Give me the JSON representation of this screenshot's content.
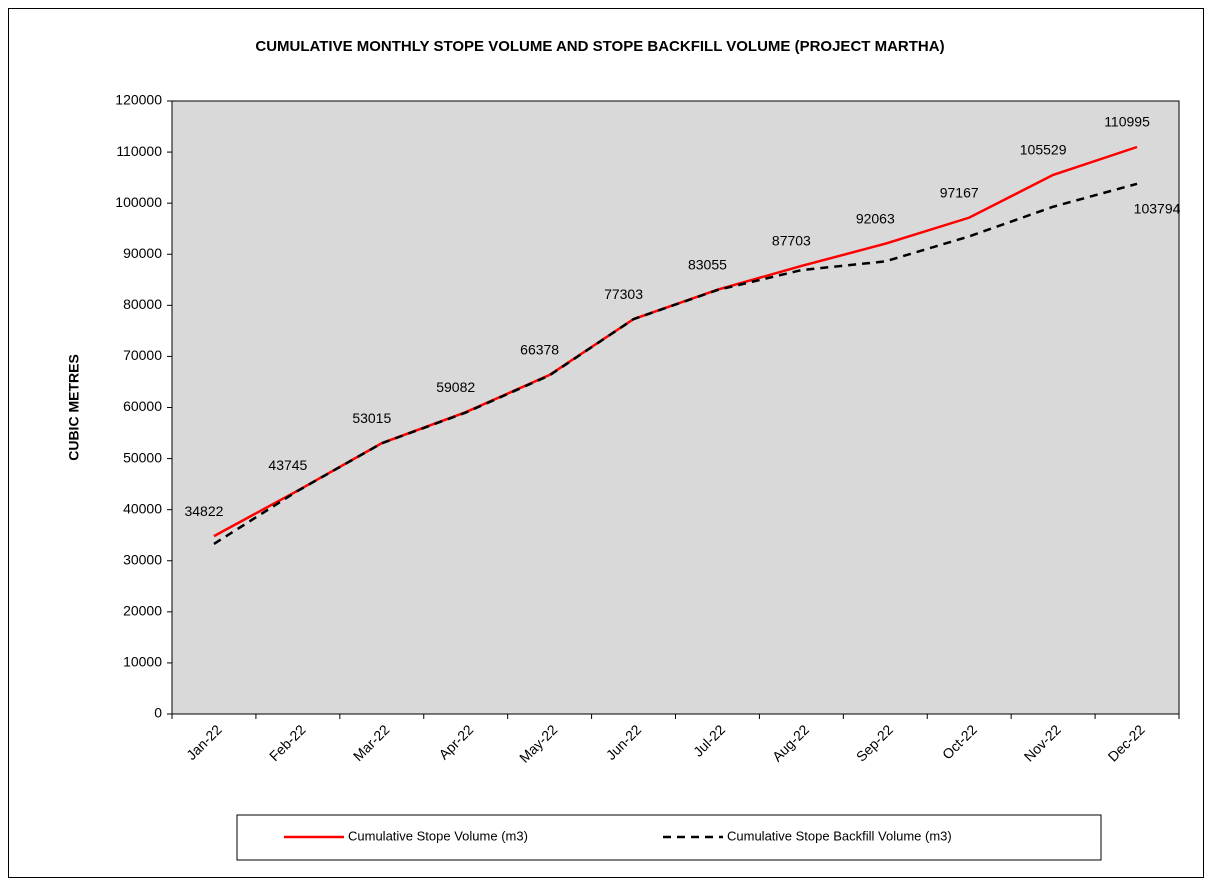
{
  "chart_data": {
    "type": "line",
    "title": "CUMULATIVE MONTHLY STOPE VOLUME AND STOPE BACKFILL VOLUME (PROJECT MARTHA)",
    "y_label": "CUBIC METRES",
    "categories": [
      "Jan-22",
      "Feb-22",
      "Mar-22",
      "Apr-22",
      "May-22",
      "Jun-22",
      "Jul-22",
      "Aug-22",
      "Sep-22",
      "Oct-22",
      "Nov-22",
      "Dec-22"
    ],
    "series": [
      {
        "name": "Cumulative Stope Volume (m3)",
        "color": "#ff0000",
        "dash": "solid",
        "values": [
          34822,
          43745,
          53015,
          59082,
          66378,
          77303,
          83055,
          87703,
          92063,
          97167,
          105529,
          110995
        ]
      },
      {
        "name": "Cumulative Stope Backfill Volume (m3)",
        "color": "#000000",
        "dash": "dashed",
        "values": [
          33300,
          43700,
          53000,
          59000,
          66300,
          77300,
          83000,
          86900,
          88600,
          93500,
          99300,
          103794
        ],
        "value_labels": [
          null,
          null,
          null,
          null,
          null,
          null,
          null,
          null,
          null,
          null,
          null,
          "103794"
        ]
      }
    ],
    "ylim": [
      0,
      120000
    ],
    "yticks": [
      0,
      10000,
      20000,
      30000,
      40000,
      50000,
      60000,
      70000,
      80000,
      90000,
      100000,
      110000,
      120000
    ],
    "legend": "bottom"
  }
}
